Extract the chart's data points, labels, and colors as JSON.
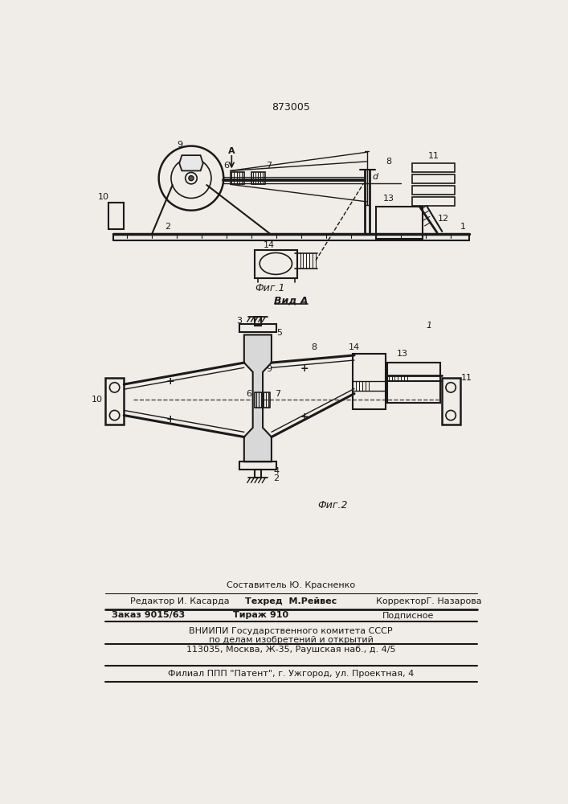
{
  "patent_number": "873005",
  "fig1_caption": "Фиг.1",
  "fig2_caption": "Фиг.2",
  "vid_a_label": "Вид А",
  "bg_color": "#f0ede8",
  "line_color": "#1a1a1a",
  "text_color": "#1a1a1a",
  "footer_line1_center": "Составитель Ю. Красненко",
  "footer_line2_left": "Редактор И. Касарда",
  "footer_line2_center": "Техред  М.Рейвес",
  "footer_line2_right": "КорректорГ. Назарова",
  "footer_line3_left": "Заказ 9015/63",
  "footer_line3_center": "Тираж 910",
  "footer_line3_right": "Подписное",
  "footer_line4": "ВНИИПИ Государственного комитета СССР",
  "footer_line5": "по делам изобретений и открытий",
  "footer_line6": "113035, Москва, Ж-35, Раушская наб., д. 4/5",
  "footer_line7": "Филиал ППП \"Патент\", г. Ужгород, ул. Проектная, 4"
}
